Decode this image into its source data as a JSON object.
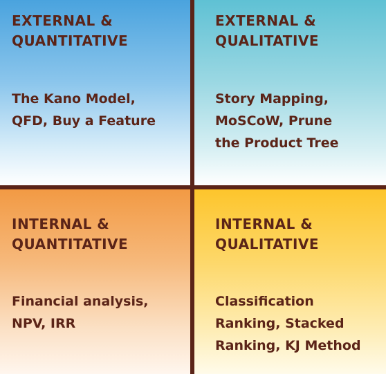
{
  "quadrants": {
    "top_left": {
      "title_line1": "EXTERNAL &",
      "title_line2": "QUANTITATIVE",
      "methods": [
        "The Kano Model,",
        "QFD, Buy a Feature"
      ]
    },
    "top_right": {
      "title_line1": "EXTERNAL &",
      "title_line2": "QUALITATIVE",
      "methods": [
        "Story Mapping,",
        "MoSCoW, Prune",
        "the Product Tree"
      ]
    },
    "bottom_left": {
      "title_line1": "INTERNAL &",
      "title_line2": "QUANTITATIVE",
      "methods": [
        "Financial analysis,",
        "NPV, IRR"
      ]
    },
    "bottom_right": {
      "title_line1": "INTERNAL &",
      "title_line2": "QUALITATIVE",
      "methods": [
        "Classification",
        "Ranking, Stacked",
        "Ranking, KJ Method"
      ]
    }
  },
  "colors": {
    "text": "#5b2418",
    "divider": "#5b2418",
    "top_left": "#4aa3de",
    "top_right": "#5fc1d4",
    "bottom_left": "#f29a44",
    "bottom_right": "#fdc52c"
  }
}
